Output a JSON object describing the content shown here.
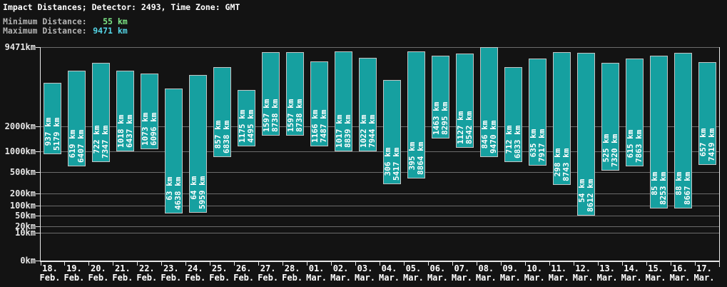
{
  "header": {
    "title": "Impact Distances; Detector: 2493, Time Zone: GMT",
    "min_label": "Minimum Distance:",
    "min_value": "55 km",
    "max_label": "Maximum Distance:",
    "max_value": "9471 km"
  },
  "colors": {
    "background": "#131313",
    "text": "#ffffff",
    "axis": "#e8e8e8",
    "grid": "#6b6b6b",
    "bar_fill": "#16a0a0",
    "bar_border": "#c4c4c4",
    "stat_label": "#b4b4b4",
    "min_value_color": "#7ee887",
    "max_value_color": "#55d7e8",
    "tick_text": "#e6e6e6"
  },
  "chart_data": {
    "type": "bar",
    "subtype": "floating-range-vertical",
    "title": "Impact Distances; Detector: 2493, Time Zone: GMT",
    "unit": "km",
    "xlabel": "",
    "ylabel": "",
    "ylim": [
      0,
      9471
    ],
    "grid": true,
    "legend": "none",
    "y_scale": {
      "type": "power",
      "exponent": 0.3,
      "min": 0,
      "max": 9471
    },
    "y_ticks": [
      {
        "value": 9471,
        "label": "9471km"
      },
      {
        "value": 2000,
        "label": "2000km"
      },
      {
        "value": 1000,
        "label": "1000km"
      },
      {
        "value": 500,
        "label": "500km"
      },
      {
        "value": 200,
        "label": "200km"
      },
      {
        "value": 100,
        "label": "100km"
      },
      {
        "value": 50,
        "label": "50km"
      },
      {
        "value": 20,
        "label": "20km"
      },
      {
        "value": 10,
        "label": "10km"
      },
      {
        "value": 0,
        "label": "0km"
      }
    ],
    "bars": [
      {
        "day": "18.",
        "month": "Feb.",
        "min": 937,
        "max": 5179
      },
      {
        "day": "19.",
        "month": "Feb.",
        "min": 619,
        "max": 6407
      },
      {
        "day": "20.",
        "month": "Feb.",
        "min": 722,
        "max": 7347
      },
      {
        "day": "21.",
        "month": "Feb.",
        "min": 1018,
        "max": 6437
      },
      {
        "day": "22.",
        "month": "Feb.",
        "min": 1073,
        "max": 6096
      },
      {
        "day": "23.",
        "month": "Feb.",
        "min": 63,
        "max": 4638
      },
      {
        "day": "24.",
        "month": "Feb.",
        "min": 64,
        "max": 5959
      },
      {
        "day": "25.",
        "month": "Feb.",
        "min": 857,
        "max": 6838
      },
      {
        "day": "26.",
        "month": "Feb.",
        "min": 1175,
        "max": 4495
      },
      {
        "day": "27.",
        "month": "Feb.",
        "min": 1597,
        "max": 8738
      },
      {
        "day": "28.",
        "month": "Feb.",
        "min": 1597,
        "max": 8738
      },
      {
        "day": "01.",
        "month": "Mar.",
        "min": 1166,
        "max": 7487
      },
      {
        "day": "02.",
        "month": "Mar.",
        "min": 1017,
        "max": 8839
      },
      {
        "day": "03.",
        "month": "Mar.",
        "min": 1022,
        "max": 7944
      },
      {
        "day": "04.",
        "month": "Mar.",
        "min": 306,
        "max": 5417
      },
      {
        "day": "05.",
        "month": "Mar.",
        "min": 395,
        "max": 8864
      },
      {
        "day": "06.",
        "month": "Mar.",
        "min": 1463,
        "max": 8295
      },
      {
        "day": "07.",
        "month": "Mar.",
        "min": 1127,
        "max": 8542
      },
      {
        "day": "08.",
        "month": "Mar.",
        "min": 846,
        "max": 9470
      },
      {
        "day": "09.",
        "month": "Mar.",
        "min": 712,
        "max": 6833
      },
      {
        "day": "10.",
        "month": "Mar.",
        "min": 635,
        "max": 7917
      },
      {
        "day": "11.",
        "month": "Mar.",
        "min": 298,
        "max": 8743
      },
      {
        "day": "12.",
        "month": "Mar.",
        "min": 54,
        "max": 8612
      },
      {
        "day": "13.",
        "month": "Mar.",
        "min": 525,
        "max": 7320
      },
      {
        "day": "14.",
        "month": "Mar.",
        "min": 615,
        "max": 7863
      },
      {
        "day": "15.",
        "month": "Mar.",
        "min": 85,
        "max": 8253
      },
      {
        "day": "16.",
        "month": "Mar.",
        "min": 88,
        "max": 8667
      },
      {
        "day": "17.",
        "month": "Mar.",
        "min": 657,
        "max": 7419
      }
    ]
  }
}
